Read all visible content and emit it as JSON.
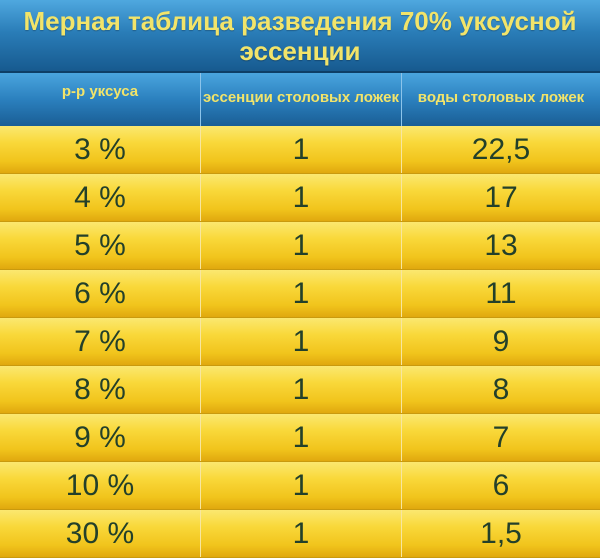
{
  "title": "Мерная таблица разведения 70% уксусной эссенции",
  "table": {
    "headers": [
      "р-р уксуса",
      "эссенции столовых ложек",
      "воды столовых ложек"
    ],
    "rows": [
      [
        "3 %",
        "1",
        "22,5"
      ],
      [
        "4 %",
        "1",
        "17"
      ],
      [
        "5 %",
        "1",
        "13"
      ],
      [
        "6 %",
        "1",
        "11"
      ],
      [
        "7 %",
        "1",
        "9"
      ],
      [
        "8 %",
        "1",
        "8"
      ],
      [
        "9 %",
        "1",
        "7"
      ],
      [
        "10 %",
        "1",
        "6"
      ],
      [
        "30 %",
        "1",
        "1,5"
      ]
    ]
  },
  "colors": {
    "header_blue": "#2a7db8",
    "header_text": "#f2e46a",
    "row_yellow": "#f9d83a",
    "cell_text": "#23402a"
  }
}
